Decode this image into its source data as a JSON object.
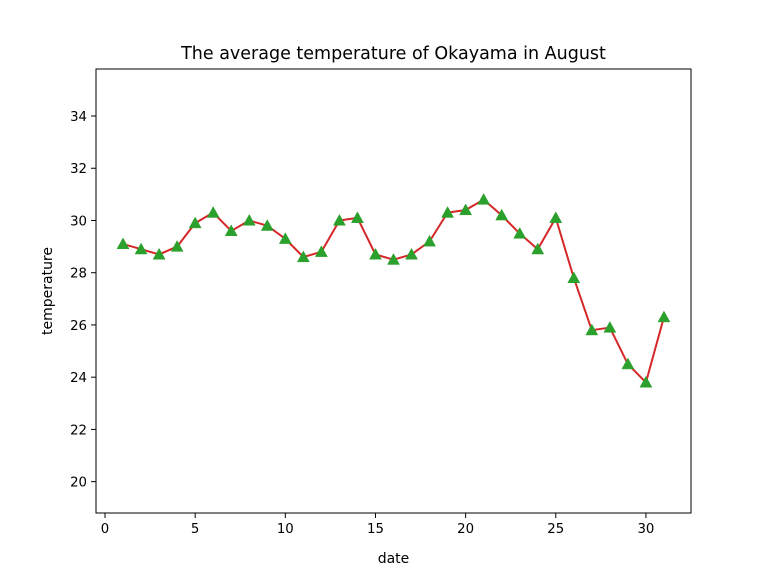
{
  "chart_data": {
    "type": "line",
    "title": "The average temperature of Okayama in August",
    "xlabel": "date",
    "ylabel": "temperature",
    "x": [
      1,
      2,
      3,
      4,
      5,
      6,
      7,
      8,
      9,
      10,
      11,
      12,
      13,
      14,
      15,
      16,
      17,
      18,
      19,
      20,
      21,
      22,
      23,
      24,
      25,
      26,
      27,
      28,
      29,
      30,
      31
    ],
    "values": [
      29.1,
      28.9,
      28.7,
      29.0,
      29.9,
      30.3,
      29.6,
      30.0,
      29.8,
      29.3,
      28.6,
      28.8,
      30.0,
      30.1,
      28.7,
      28.5,
      28.7,
      29.2,
      30.3,
      30.4,
      30.8,
      30.2,
      29.5,
      28.9,
      30.1,
      27.8,
      25.8,
      25.9,
      24.5,
      23.8,
      26.3
    ],
    "xlim": [
      -0.5,
      32.5
    ],
    "ylim": [
      18.8,
      35.8
    ],
    "xticks": [
      0,
      5,
      10,
      15,
      20,
      25,
      30
    ],
    "yticks": [
      20,
      22,
      24,
      26,
      28,
      30,
      32,
      34
    ],
    "grid": false,
    "line_color": "#d62728",
    "marker_color": "#2ca02c",
    "marker": "triangle-up"
  }
}
